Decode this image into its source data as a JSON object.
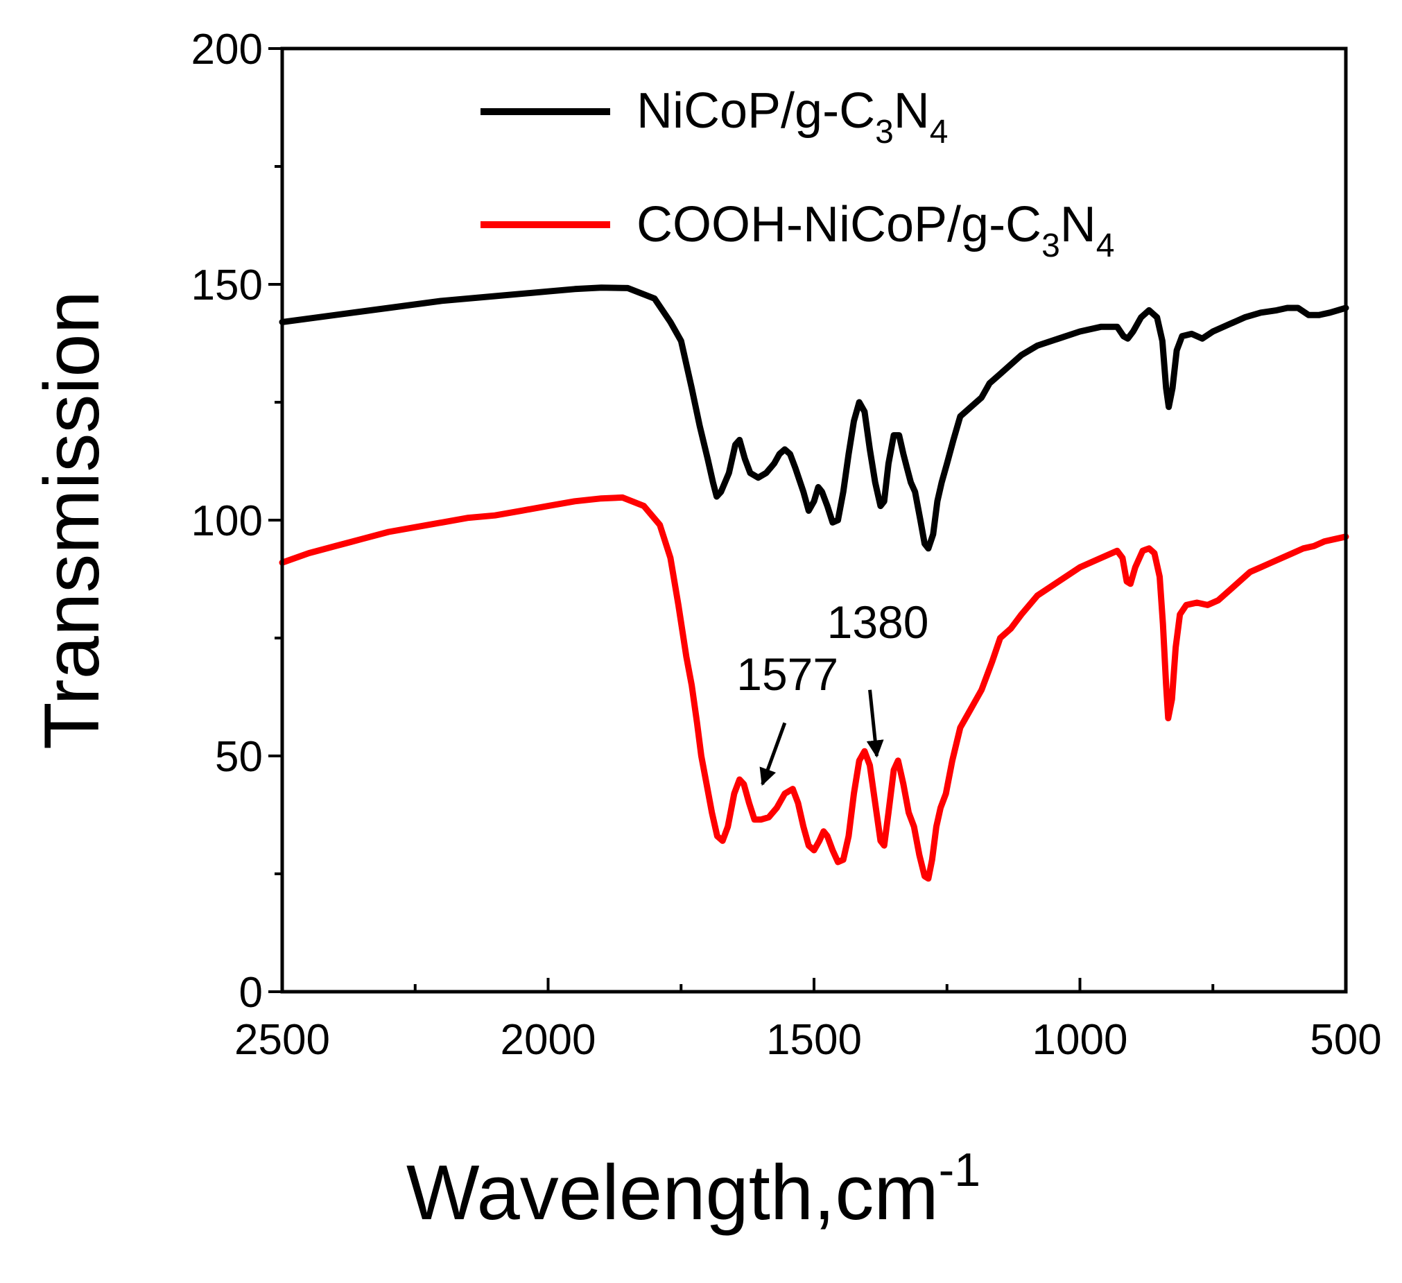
{
  "chart_data": {
    "type": "line",
    "title": "",
    "xlabel": "Wavelength,cm",
    "xlabel_superscript": "-1",
    "ylabel": "Transmission",
    "xlim": [
      2500,
      500
    ],
    "ylim": [
      0,
      200
    ],
    "x_reversed": true,
    "grid": false,
    "legend_position": "top-center",
    "x_ticks": [
      2500,
      2000,
      1500,
      1000,
      500
    ],
    "x_tick_labels": [
      "2500",
      "2000",
      "1500",
      "1000",
      "500"
    ],
    "y_ticks": [
      0,
      50,
      100,
      150,
      200
    ],
    "y_tick_labels": [
      "0",
      "50",
      "100",
      "150",
      "200"
    ],
    "series": [
      {
        "name": "NiCoP/g-C3N4",
        "legend_label": {
          "base": "NiCoP/g-C",
          "sub1": "3",
          "mid": "N",
          "sub2": "4"
        },
        "color": "#000000",
        "points": [
          [
            2500,
            142
          ],
          [
            2400,
            143.5
          ],
          [
            2300,
            145
          ],
          [
            2200,
            146.5
          ],
          [
            2100,
            147.5
          ],
          [
            2000,
            148.5
          ],
          [
            1950,
            149
          ],
          [
            1900,
            149.3
          ],
          [
            1850,
            149.2
          ],
          [
            1800,
            147
          ],
          [
            1770,
            142
          ],
          [
            1750,
            138
          ],
          [
            1730,
            128
          ],
          [
            1715,
            120
          ],
          [
            1700,
            113
          ],
          [
            1690,
            108
          ],
          [
            1683,
            105
          ],
          [
            1675,
            106
          ],
          [
            1660,
            110
          ],
          [
            1648,
            116
          ],
          [
            1640,
            117
          ],
          [
            1630,
            113
          ],
          [
            1620,
            110
          ],
          [
            1605,
            109
          ],
          [
            1590,
            110
          ],
          [
            1575,
            112
          ],
          [
            1565,
            114
          ],
          [
            1555,
            115
          ],
          [
            1545,
            114
          ],
          [
            1535,
            111
          ],
          [
            1520,
            106
          ],
          [
            1510,
            102
          ],
          [
            1500,
            104
          ],
          [
            1492,
            107
          ],
          [
            1485,
            106
          ],
          [
            1475,
            103
          ],
          [
            1465,
            99.5
          ],
          [
            1455,
            100
          ],
          [
            1445,
            106
          ],
          [
            1435,
            114
          ],
          [
            1425,
            121
          ],
          [
            1415,
            125
          ],
          [
            1405,
            123
          ],
          [
            1395,
            115
          ],
          [
            1385,
            108
          ],
          [
            1375,
            103
          ],
          [
            1368,
            104
          ],
          [
            1360,
            112
          ],
          [
            1350,
            118
          ],
          [
            1340,
            118
          ],
          [
            1332,
            114
          ],
          [
            1325,
            111
          ],
          [
            1318,
            108
          ],
          [
            1310,
            106
          ],
          [
            1300,
            100
          ],
          [
            1292,
            95
          ],
          [
            1285,
            94
          ],
          [
            1276,
            97
          ],
          [
            1268,
            104
          ],
          [
            1260,
            108
          ],
          [
            1250,
            112
          ],
          [
            1238,
            117
          ],
          [
            1225,
            122
          ],
          [
            1205,
            124
          ],
          [
            1185,
            126
          ],
          [
            1170,
            129
          ],
          [
            1150,
            131
          ],
          [
            1130,
            133
          ],
          [
            1110,
            135
          ],
          [
            1080,
            137
          ],
          [
            1040,
            138.5
          ],
          [
            1000,
            140
          ],
          [
            960,
            141
          ],
          [
            930,
            141
          ],
          [
            918,
            139
          ],
          [
            910,
            138.5
          ],
          [
            900,
            140
          ],
          [
            885,
            143
          ],
          [
            870,
            144.5
          ],
          [
            855,
            143
          ],
          [
            845,
            138
          ],
          [
            838,
            128
          ],
          [
            833,
            124
          ],
          [
            826,
            128
          ],
          [
            818,
            136
          ],
          [
            808,
            139
          ],
          [
            790,
            139.5
          ],
          [
            770,
            138.5
          ],
          [
            750,
            140
          ],
          [
            720,
            141.5
          ],
          [
            690,
            143
          ],
          [
            660,
            144
          ],
          [
            630,
            144.5
          ],
          [
            610,
            145
          ],
          [
            590,
            145
          ],
          [
            570,
            143.5
          ],
          [
            550,
            143.5
          ],
          [
            530,
            144
          ],
          [
            500,
            145
          ]
        ]
      },
      {
        "name": "COOH-NiCoP/g-C3N4",
        "legend_label": {
          "base": "COOH-NiCoP/g-C",
          "sub1": "3",
          "mid": "N",
          "sub2": "4"
        },
        "color": "#ff0000",
        "points": [
          [
            2500,
            91
          ],
          [
            2450,
            93
          ],
          [
            2400,
            94.5
          ],
          [
            2350,
            96
          ],
          [
            2300,
            97.5
          ],
          [
            2250,
            98.5
          ],
          [
            2200,
            99.5
          ],
          [
            2150,
            100.5
          ],
          [
            2100,
            101
          ],
          [
            2050,
            102
          ],
          [
            2000,
            103
          ],
          [
            1950,
            104
          ],
          [
            1900,
            104.6
          ],
          [
            1860,
            104.8
          ],
          [
            1820,
            103
          ],
          [
            1790,
            99
          ],
          [
            1770,
            92
          ],
          [
            1755,
            82
          ],
          [
            1740,
            71
          ],
          [
            1730,
            65
          ],
          [
            1720,
            57
          ],
          [
            1712,
            50
          ],
          [
            1702,
            44
          ],
          [
            1692,
            38
          ],
          [
            1682,
            33
          ],
          [
            1672,
            32
          ],
          [
            1662,
            35
          ],
          [
            1650,
            42
          ],
          [
            1640,
            45
          ],
          [
            1632,
            44
          ],
          [
            1622,
            40
          ],
          [
            1612,
            36.5
          ],
          [
            1600,
            36.5
          ],
          [
            1585,
            37
          ],
          [
            1570,
            39
          ],
          [
            1555,
            42
          ],
          [
            1540,
            43
          ],
          [
            1530,
            40
          ],
          [
            1520,
            35
          ],
          [
            1510,
            31
          ],
          [
            1500,
            30
          ],
          [
            1490,
            32
          ],
          [
            1482,
            34
          ],
          [
            1475,
            33
          ],
          [
            1465,
            30
          ],
          [
            1455,
            27.5
          ],
          [
            1445,
            28
          ],
          [
            1435,
            33
          ],
          [
            1425,
            42
          ],
          [
            1415,
            49
          ],
          [
            1405,
            51
          ],
          [
            1395,
            48
          ],
          [
            1385,
            40
          ],
          [
            1375,
            32
          ],
          [
            1368,
            31
          ],
          [
            1360,
            38
          ],
          [
            1350,
            47
          ],
          [
            1342,
            49
          ],
          [
            1332,
            44
          ],
          [
            1322,
            38
          ],
          [
            1312,
            35
          ],
          [
            1302,
            29
          ],
          [
            1292,
            24.5
          ],
          [
            1285,
            24
          ],
          [
            1278,
            28
          ],
          [
            1270,
            35
          ],
          [
            1262,
            39
          ],
          [
            1252,
            42
          ],
          [
            1240,
            49
          ],
          [
            1225,
            56
          ],
          [
            1205,
            60
          ],
          [
            1185,
            64
          ],
          [
            1165,
            70
          ],
          [
            1150,
            75
          ],
          [
            1130,
            77
          ],
          [
            1110,
            80
          ],
          [
            1080,
            84
          ],
          [
            1040,
            87
          ],
          [
            1000,
            90
          ],
          [
            960,
            92
          ],
          [
            930,
            93.5
          ],
          [
            920,
            92
          ],
          [
            912,
            87
          ],
          [
            905,
            86.5
          ],
          [
            896,
            90
          ],
          [
            882,
            93.5
          ],
          [
            870,
            94
          ],
          [
            860,
            93
          ],
          [
            850,
            88
          ],
          [
            844,
            78
          ],
          [
            838,
            65
          ],
          [
            834,
            58
          ],
          [
            827,
            62
          ],
          [
            820,
            73
          ],
          [
            812,
            80
          ],
          [
            800,
            82
          ],
          [
            780,
            82.5
          ],
          [
            760,
            82
          ],
          [
            740,
            83
          ],
          [
            720,
            85
          ],
          [
            700,
            87
          ],
          [
            680,
            89
          ],
          [
            660,
            90
          ],
          [
            640,
            91
          ],
          [
            620,
            92
          ],
          [
            600,
            93
          ],
          [
            580,
            94
          ],
          [
            560,
            94.5
          ],
          [
            540,
            95.5
          ],
          [
            520,
            96
          ],
          [
            500,
            96.5
          ]
        ]
      }
    ],
    "annotations": [
      {
        "text": "1577",
        "label_at": [
          1550,
          64
        ],
        "arrow_from": [
          1555,
          57
        ],
        "arrow_to": [
          1597,
          44
        ]
      },
      {
        "text": "1380",
        "label_at": [
          1380,
          75
        ],
        "arrow_from": [
          1395,
          64
        ],
        "arrow_to": [
          1382,
          50
        ]
      }
    ]
  }
}
